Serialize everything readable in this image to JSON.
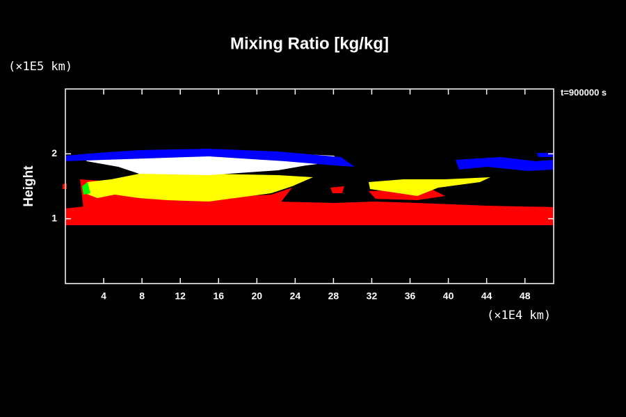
{
  "chart_data": {
    "type": "contour",
    "title": "Mixing Ratio [kg/kg]",
    "ylabel": "Height",
    "y_unit": "(×1E5 km)",
    "x_unit": "(×1E4 km)",
    "annotation": "t=900000 s",
    "xlim": [
      0,
      51
    ],
    "xticks": [
      4,
      8,
      12,
      16,
      20,
      24,
      28,
      32,
      36,
      40,
      44,
      48
    ],
    "ylim": [
      0,
      3
    ],
    "yticks": [
      1,
      2
    ]
  }
}
